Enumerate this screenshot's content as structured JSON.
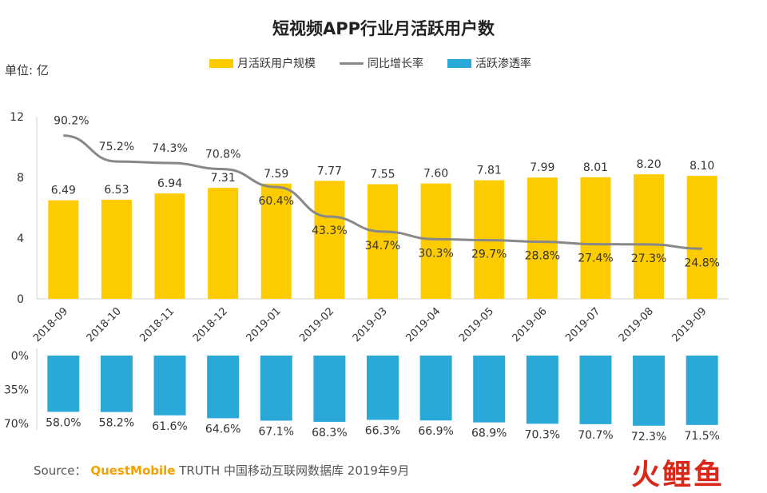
{
  "header": {
    "title": "短视频APP行业月活跃用户数",
    "unit": "单位: 亿"
  },
  "legend": [
    {
      "name": "月活跃用户规模",
      "kind": "bar",
      "color": "#FCCB00"
    },
    {
      "name": "同比增长率",
      "kind": "line",
      "color": "#888888"
    },
    {
      "name": "活跃渗透率",
      "kind": "bar",
      "color": "#2AA9D8"
    }
  ],
  "footer": {
    "source_label": "Source：",
    "brand": "QuestMobile",
    "source_text": "TRUTH 中国移动互联网数据库 2019年9月",
    "logo_text": "火鲤鱼"
  },
  "chart_data": [
    {
      "type": "bar",
      "categories": [
        "2018-09",
        "2018-10",
        "2018-11",
        "2018-12",
        "2019-01",
        "2019-02",
        "2019-03",
        "2019-04",
        "2019-05",
        "2019-06",
        "2019-07",
        "2019-08",
        "2019-09"
      ],
      "series": [
        {
          "name": "月活跃用户规模",
          "type": "bar",
          "color": "#FCCB00",
          "values": [
            6.49,
            6.53,
            6.94,
            7.31,
            7.59,
            7.77,
            7.55,
            7.6,
            7.81,
            7.99,
            8.01,
            8.2,
            8.1
          ],
          "labels": [
            "6.49",
            "6.53",
            "6.94",
            "7.31",
            "7.59",
            "7.77",
            "7.55",
            "7.60",
            "7.81",
            "7.99",
            "8.01",
            "8.20",
            "8.10"
          ]
        },
        {
          "name": "同比增长率",
          "type": "line",
          "color": "#888888",
          "values": [
            90.2,
            75.2,
            74.3,
            70.8,
            60.4,
            43.3,
            34.7,
            30.3,
            29.7,
            28.8,
            27.4,
            27.3,
            24.8
          ],
          "labels": [
            "90.2%",
            "75.2%",
            "74.3%",
            "70.8%",
            "60.4%",
            "43.3%",
            "34.7%",
            "30.3%",
            "29.7%",
            "28.8%",
            "27.4%",
            "27.3%",
            "24.8%"
          ]
        }
      ],
      "ylim": [
        0,
        12
      ],
      "yticks": [
        "0",
        "4",
        "8",
        "12"
      ]
    },
    {
      "type": "bar",
      "orientation": "downward",
      "categories": [
        "2018-09",
        "2018-10",
        "2018-11",
        "2018-12",
        "2019-01",
        "2019-02",
        "2019-03",
        "2019-04",
        "2019-05",
        "2019-06",
        "2019-07",
        "2019-08",
        "2019-09"
      ],
      "series": [
        {
          "name": "活跃渗透率",
          "color": "#2AA9D8",
          "values": [
            58.0,
            58.2,
            61.6,
            64.6,
            67.1,
            68.3,
            66.3,
            66.9,
            68.9,
            70.3,
            70.7,
            72.3,
            71.5
          ],
          "labels": [
            "58.0%",
            "58.2%",
            "61.6%",
            "64.6%",
            "67.1%",
            "68.3%",
            "66.3%",
            "66.9%",
            "68.9%",
            "70.3%",
            "70.7%",
            "72.3%",
            "71.5%"
          ]
        }
      ],
      "ylim": [
        0,
        70
      ],
      "yticks": [
        "0%",
        "35%",
        "70%"
      ]
    }
  ]
}
